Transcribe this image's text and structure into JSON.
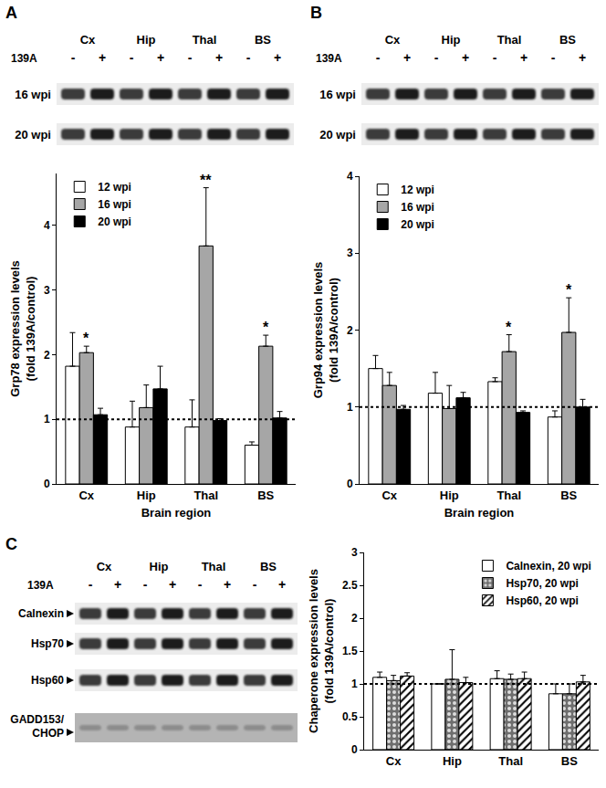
{
  "chart_data": [
    {
      "panel": "A",
      "type": "bar",
      "categories": [
        "Cx",
        "Hip",
        "Thal",
        "BS"
      ],
      "series": [
        {
          "name": "12 wpi",
          "color": "#ffffff",
          "values": [
            1.82,
            0.88,
            0.88,
            0.6
          ],
          "errors": [
            0.52,
            0.4,
            0.42,
            0.05
          ]
        },
        {
          "name": "16 wpi",
          "color": "#a6a6a6",
          "values": [
            2.03,
            1.18,
            3.68,
            2.13
          ],
          "errors": [
            0.1,
            0.35,
            0.9,
            0.17
          ]
        },
        {
          "name": "20 wpi",
          "color": "#000000",
          "values": [
            1.07,
            1.47,
            0.98,
            1.02
          ],
          "errors": [
            0.1,
            0.35,
            0.03,
            0.1
          ]
        }
      ],
      "x_label": "Brain region",
      "y_label": "Grp78 expression levels (fold 139A/control)",
      "ylim": [
        0,
        4.8
      ],
      "yticks": [
        0,
        1,
        2,
        3,
        4
      ],
      "reference_line": 1,
      "annotations": [
        {
          "category": "Cx",
          "series": "16 wpi",
          "text": "*"
        },
        {
          "category": "Thal",
          "series": "16 wpi",
          "text": "**"
        },
        {
          "category": "BS",
          "series": "16 wpi",
          "text": "*"
        }
      ],
      "legend": "top-left"
    },
    {
      "panel": "B",
      "type": "bar",
      "categories": [
        "Cx",
        "Hip",
        "Thal",
        "BS"
      ],
      "series": [
        {
          "name": "12 wpi",
          "color": "#ffffff",
          "values": [
            1.5,
            1.18,
            1.33,
            0.87
          ],
          "errors": [
            0.17,
            0.27,
            0.05,
            0.08
          ]
        },
        {
          "name": "16 wpi",
          "color": "#a6a6a6",
          "values": [
            1.28,
            0.98,
            1.72,
            1.97
          ],
          "errors": [
            0.17,
            0.3,
            0.22,
            0.45
          ]
        },
        {
          "name": "20 wpi",
          "color": "#000000",
          "values": [
            0.97,
            1.12,
            0.93,
            1.0
          ],
          "errors": [
            0.05,
            0.07,
            0.02,
            0.1
          ]
        }
      ],
      "x_label": "Brain region",
      "y_label": "Grp94 expression levels (fold 139A/control)",
      "ylim": [
        0,
        4
      ],
      "yticks": [
        0,
        1,
        2,
        3,
        4
      ],
      "reference_line": 1,
      "annotations": [
        {
          "category": "Thal",
          "series": "16 wpi",
          "text": "*"
        },
        {
          "category": "BS",
          "series": "16 wpi",
          "text": "*"
        }
      ],
      "legend": "top-left"
    },
    {
      "panel": "C",
      "type": "bar",
      "categories": [
        "Cx",
        "Hip",
        "Thal",
        "BS"
      ],
      "series": [
        {
          "name": "Calnexin, 20 wpi",
          "color": "#ffffff",
          "values": [
            1.1,
            1.0,
            1.08,
            0.85
          ],
          "errors": [
            0.08,
            0.0,
            0.12,
            0.15
          ]
        },
        {
          "name": "Hsp70, 20 wpi",
          "color": "#6e6e6e",
          "marker": "dotted",
          "values": [
            1.05,
            1.07,
            1.07,
            0.85
          ],
          "errors": [
            0.08,
            0.45,
            0.08,
            0.15
          ]
        },
        {
          "name": "Hsp60, 20 wpi",
          "color": "#ffffff",
          "marker": "hatched",
          "values": [
            1.12,
            1.02,
            1.08,
            1.03
          ],
          "errors": [
            0.05,
            0.08,
            0.1,
            0.1
          ]
        }
      ],
      "y_label": "Chaperone expression levels (fold 139A/control)",
      "ylim": [
        0,
        3
      ],
      "yticks": [
        0,
        0.5,
        1,
        1.5,
        2,
        2.5,
        3
      ],
      "reference_line": 1,
      "legend": "top-right"
    }
  ],
  "blots": [
    {
      "panel": "A",
      "lanes": [
        "Cx",
        "Hip",
        "Thal",
        "BS"
      ],
      "treatment": "139A",
      "signs": [
        "-",
        "+",
        "-",
        "+",
        "-",
        "+",
        "-",
        "+"
      ],
      "rows": [
        "16 wpi",
        "20 wpi"
      ]
    },
    {
      "panel": "B",
      "lanes": [
        "Cx",
        "Hip",
        "Thal",
        "BS"
      ],
      "treatment": "139A",
      "signs": [
        "-",
        "+",
        "-",
        "+",
        "-",
        "+",
        "-",
        "+"
      ],
      "rows": [
        "16 wpi",
        "20 wpi"
      ]
    },
    {
      "panel": "C",
      "lanes": [
        "Cx",
        "Hip",
        "Thal",
        "BS"
      ],
      "treatment": "139A",
      "signs": [
        "-",
        "+",
        "-",
        "+",
        "-",
        "+",
        "-",
        "+"
      ],
      "rows": [
        "Calnexin",
        "Hsp70",
        "Hsp60",
        "GADD153/CHOP"
      ]
    }
  ]
}
